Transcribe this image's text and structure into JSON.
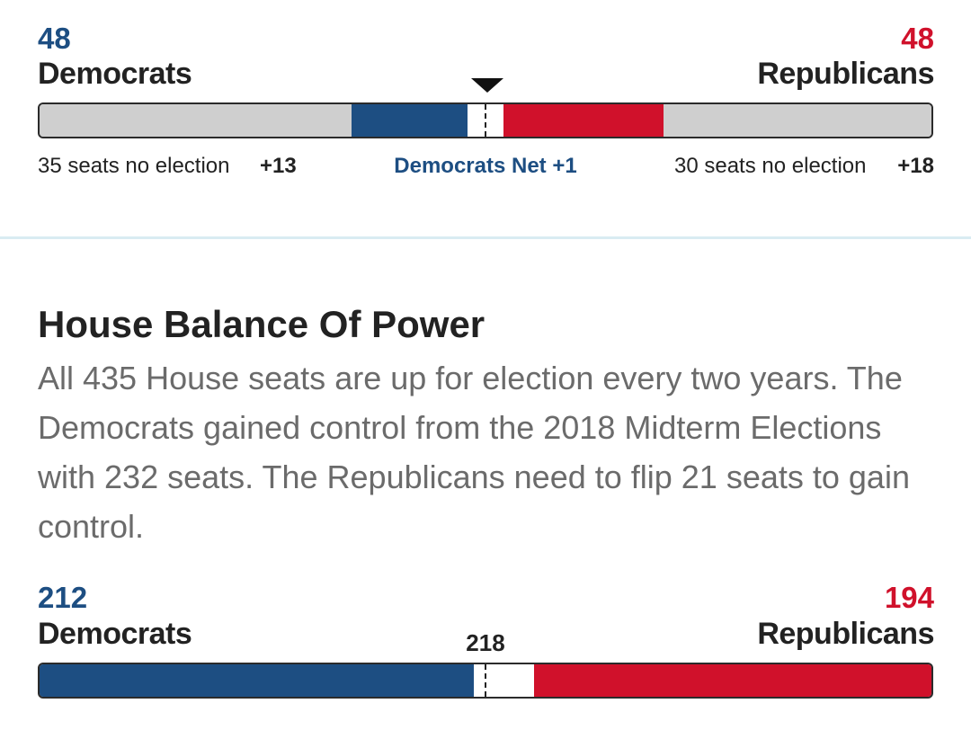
{
  "senate": {
    "dem_count": "48",
    "dem_label": "Democrats",
    "rep_count": "48",
    "rep_label": "Republicans",
    "dem_no_election": "35 seats no election",
    "dem_gain": "+13",
    "net_label": "Democrats Net +1",
    "rep_no_election": "30 seats no election",
    "rep_gain": "+18",
    "bar": {
      "dem_no_election_seats": 35,
      "dem_up_seats": 13,
      "undecided_seats": 4,
      "rep_up_seats": 18,
      "rep_no_election_seats": 30,
      "total_seats": 100
    }
  },
  "house": {
    "title": "House Balance Of Power",
    "description": "All 435 House seats are up for election every two years. The Democrats gained control from the 2018 Midterm Elections with 232 seats. The Republicans need to flip 21 seats to gain control.",
    "dem_count": "212",
    "dem_label": "Democrats",
    "rep_count": "194",
    "rep_label": "Republicans",
    "threshold": "218",
    "bar": {
      "dem_seats": 212,
      "undecided_seats": 29,
      "rep_seats": 194,
      "total_seats": 435
    }
  },
  "colors": {
    "democrat": "#1d4e82",
    "republican": "#d0112b",
    "no_election": "#cfcfcf",
    "undecided": "#ffffff"
  }
}
